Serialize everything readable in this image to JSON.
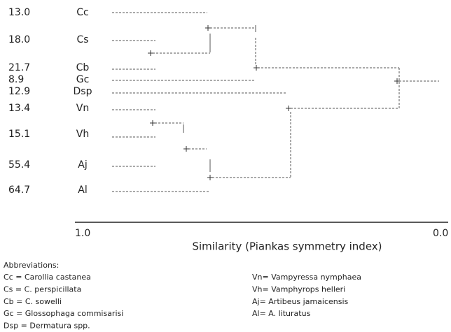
{
  "leaves": [
    {
      "value": "13.0",
      "label": "Cc"
    },
    {
      "value": "18.0",
      "label": "Cs"
    },
    {
      "value": "21.7",
      "label": "Cb"
    },
    {
      "value": "8.9",
      "label": "Gc"
    },
    {
      "value": "12.9",
      "label": "Dsp"
    },
    {
      "value": "13.4",
      "label": "Vn"
    },
    {
      "value": "15.1",
      "label": "Vh"
    },
    {
      "value": "55.4",
      "label": "Aj"
    },
    {
      "value": "64.7",
      "label": "Al"
    }
  ],
  "axis": {
    "left": "1.0",
    "right": "0.0",
    "title": "Similarity (Piankas symmetry index)"
  },
  "abbreviations": {
    "heading": "Abbreviations:",
    "left": [
      "Cc = Carollia castanea",
      "Cs = C. perspicillata",
      "Cb = C. sowelli",
      "Gc = Glossophaga commisarisi",
      "Dsp = Dermatura spp."
    ],
    "right": [
      "Vn= Vampyressa nymphaea",
      "Vh= Vamphyrops helleri",
      "Aj= Artibeus jamaicensis",
      "Al= A. lituratus"
    ]
  }
}
